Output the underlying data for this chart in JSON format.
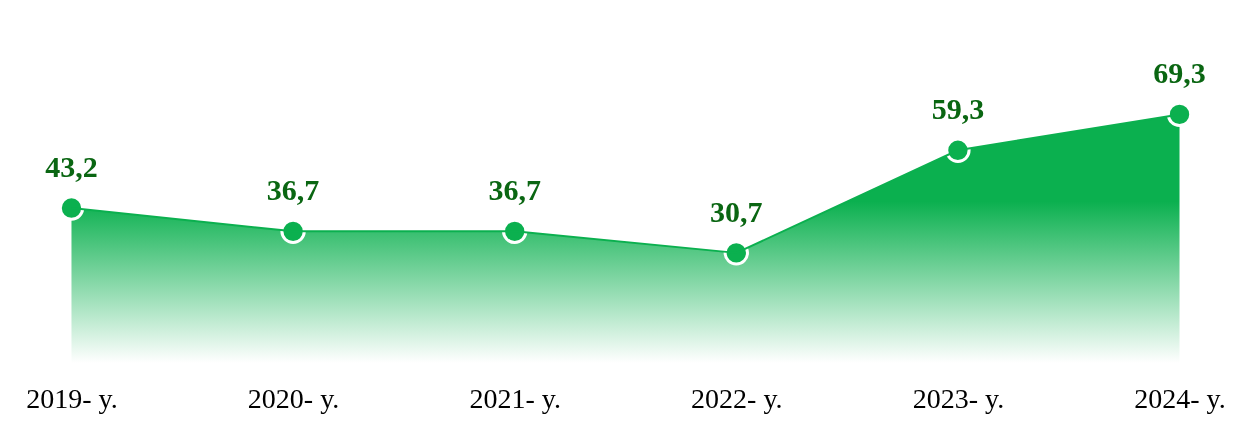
{
  "chart_data": {
    "type": "area",
    "categories": [
      "2019- y.",
      "2020- y.",
      "2021- y.",
      "2022- y.",
      "2023- y.",
      "2024- y."
    ],
    "values": [
      43.2,
      36.7,
      36.7,
      30.7,
      59.3,
      69.3
    ],
    "color": "#0bb04f",
    "value_labels": [
      "43,2",
      "36,7",
      "36,7",
      "30,7",
      "59,3",
      "69,3"
    ],
    "marker": "circle",
    "grid": false
  }
}
